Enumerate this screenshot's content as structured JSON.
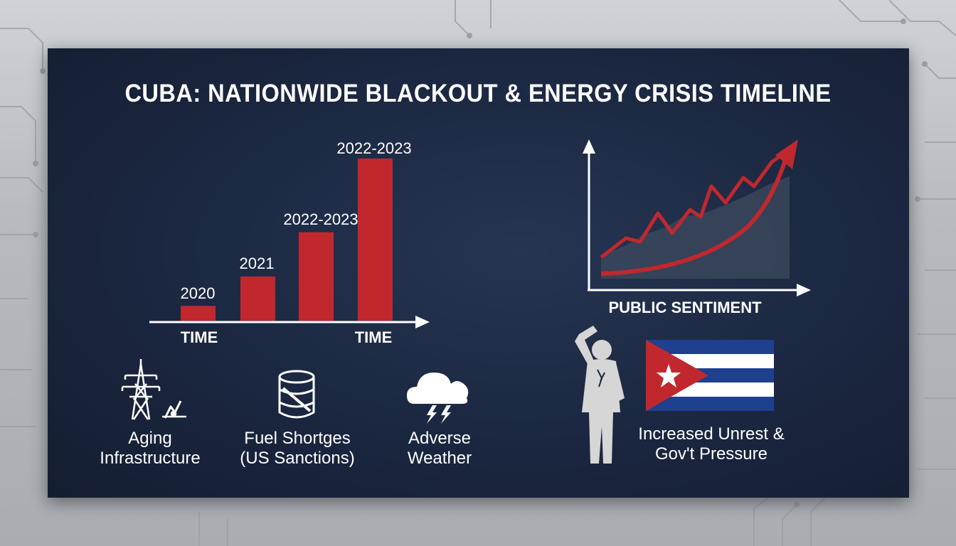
{
  "title": "CUBA: NATIONWIDE BLACKOUT & ENERGY CRISIS TIMELINE",
  "colors": {
    "accent_red": "#c0282e",
    "panel": "#1b2740",
    "text": "#ffffff",
    "flag_blue": "#1f3f8f"
  },
  "chart_data": [
    {
      "type": "bar",
      "categories": [
        "2020",
        "2021",
        "2022-2023",
        "2022-2023"
      ],
      "values": [
        1,
        3,
        6,
        11
      ],
      "xlabel_left": "TIME",
      "xlabel_right": "TIME"
    },
    {
      "type": "line",
      "xlabel": "PUBLIC SENTIMENT",
      "trend": "rising"
    }
  ],
  "factors": [
    {
      "icon": "power-tower-icon",
      "line1": "Aging",
      "line2": "Infrastructure"
    },
    {
      "icon": "fuel-barrel-icon",
      "line1": "Fuel Shortges",
      "line2": "(US Sanctions)"
    },
    {
      "icon": "storm-cloud-icon",
      "line1": "Adverse",
      "line2": "Weather"
    }
  ],
  "unrest": {
    "line1": "Increased Unrest &",
    "line2": "Gov't Pressure",
    "icon": "protester-icon",
    "flag": "cuba-flag-icon"
  }
}
